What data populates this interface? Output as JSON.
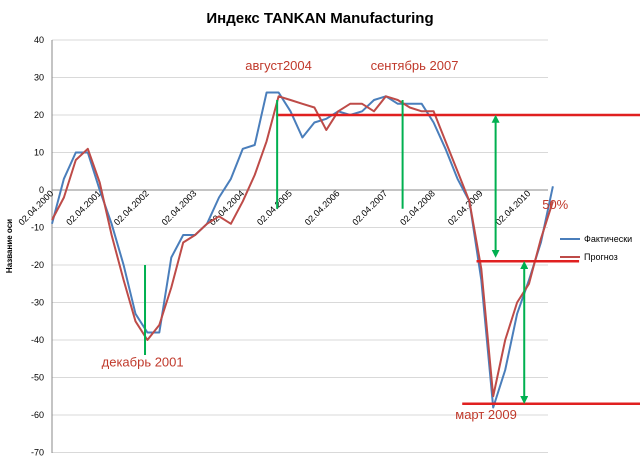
{
  "chart_data": {
    "type": "line",
    "title": "Индекс TANKAN Manufacturing",
    "ylabel": "Название оси",
    "ylim": [
      -70,
      40
    ],
    "yticks": [
      40,
      30,
      20,
      10,
      0,
      -10,
      -20,
      -30,
      -40,
      -50,
      -60,
      -70
    ],
    "x_tick_labels": [
      "02.04.2000",
      "02.04.2001",
      "02.04.2002",
      "02.04.2003",
      "02.04.2004",
      "02.04.2005",
      "02.04.2006",
      "02.04.2007",
      "02.04.2008",
      "02.04.2009",
      "02.04.2010"
    ],
    "grid": true,
    "legend_position": "right",
    "series": [
      {
        "name": "Фактически",
        "color": "#4a7ebb",
        "x": [
          2000.0,
          2000.25,
          2000.5,
          2000.75,
          2001.0,
          2001.25,
          2001.5,
          2001.75,
          2002.0,
          2002.25,
          2002.5,
          2002.75,
          2003.0,
          2003.25,
          2003.5,
          2003.75,
          2004.0,
          2004.25,
          2004.5,
          2004.75,
          2005.0,
          2005.25,
          2005.5,
          2005.75,
          2006.0,
          2006.25,
          2006.5,
          2006.75,
          2007.0,
          2007.25,
          2007.5,
          2007.75,
          2008.0,
          2008.25,
          2008.5,
          2008.75,
          2009.0,
          2009.25,
          2009.5,
          2009.75,
          2010.0,
          2010.25,
          2010.5
        ],
        "values": [
          -9,
          3,
          10,
          10,
          0,
          -9,
          -20,
          -33,
          -38,
          -38,
          -18,
          -12,
          -12,
          -9,
          -2,
          3,
          11,
          12,
          26,
          26,
          21,
          14,
          18,
          19,
          21,
          20,
          21,
          24,
          25,
          23,
          23,
          23,
          18,
          11,
          3,
          -3,
          -24,
          -58,
          -48,
          -33,
          -24,
          -14,
          1
        ]
      },
      {
        "name": "Прогноз",
        "color": "#be4b48",
        "x": [
          2000.0,
          2000.25,
          2000.5,
          2000.75,
          2001.0,
          2001.25,
          2001.5,
          2001.75,
          2002.0,
          2002.25,
          2002.5,
          2002.75,
          2003.0,
          2003.25,
          2003.5,
          2003.75,
          2004.0,
          2004.25,
          2004.5,
          2004.75,
          2005.0,
          2005.25,
          2005.5,
          2005.75,
          2006.0,
          2006.25,
          2006.5,
          2006.75,
          2007.0,
          2007.25,
          2007.5,
          2007.75,
          2008.0,
          2008.25,
          2008.5,
          2008.75,
          2009.0,
          2009.25,
          2009.5,
          2009.75,
          2010.0,
          2010.25,
          2010.5
        ],
        "values": [
          -8,
          -2,
          8,
          11,
          2,
          -12,
          -24,
          -35,
          -40,
          -36,
          -26,
          -14,
          -12,
          -9,
          -7,
          -9,
          -3,
          4,
          13,
          25,
          24,
          23,
          22,
          16,
          21,
          23,
          23,
          21,
          25,
          24,
          22,
          21,
          21,
          13,
          5,
          -3,
          -21,
          -55,
          -40,
          -30,
          -25,
          -13,
          -3
        ]
      }
    ],
    "annotations": {
      "labels": [
        {
          "text": "август2004",
          "x": 2004.75,
          "y": 32
        },
        {
          "text": "сентябрь 2007",
          "x": 2007.6,
          "y": 32
        },
        {
          "text": "декабрь 2001",
          "x": 2001.9,
          "y": -47
        },
        {
          "text": "март 2009",
          "x": 2009.1,
          "y": -61
        },
        {
          "text": "50%",
          "x": 2010.55,
          "y": -5
        }
      ],
      "hlines": [
        {
          "y": 20,
          "x_from": 2004.7,
          "x_to": 2012.6,
          "color": "#e02020"
        },
        {
          "y": -19,
          "x_from": 2008.9,
          "x_to": 2011.05,
          "color": "#e02020"
        },
        {
          "y": -57,
          "x_from": 2008.6,
          "x_to": 2012.6,
          "color": "#e02020"
        }
      ],
      "vlines": [
        {
          "x": 2001.95,
          "y_from": -20,
          "y_to": -44,
          "color": "#00b050"
        },
        {
          "x": 2004.72,
          "y_from": 24,
          "y_to": -5,
          "color": "#00b050"
        },
        {
          "x": 2007.35,
          "y_from": 24,
          "y_to": -5,
          "color": "#00b050"
        }
      ],
      "arrows": [
        {
          "x": 2009.3,
          "y_from": 19,
          "y_to": -17,
          "color": "#00b050"
        },
        {
          "x": 2009.9,
          "y_from": -20,
          "y_to": -56,
          "color": "#00b050"
        }
      ]
    }
  }
}
